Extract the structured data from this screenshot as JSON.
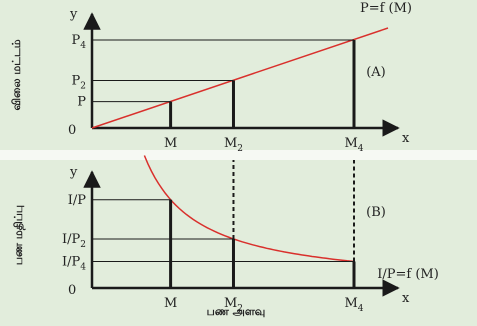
{
  "colors": {
    "background": "#e2eddc",
    "axis": "#1a1a1a",
    "curve": "#d9302c"
  },
  "chart_data": [
    {
      "id": "A",
      "type": "line",
      "panel_label": "(A)",
      "function_label": "P=f (M)",
      "x_axis_letter": "x",
      "y_axis_letter": "y",
      "origin_label": "0",
      "ylabel": "விலை மட்டம்",
      "xlim": [
        0,
        5
      ],
      "ylim": [
        0,
        5
      ],
      "line": {
        "from": [
          0,
          0
        ],
        "to": [
          5,
          5
        ]
      },
      "points": [
        {
          "x": 1.5,
          "y": 1.5,
          "x_label": "M",
          "y_label": "P",
          "x_sub": "",
          "y_sub": ""
        },
        {
          "x": 2.7,
          "y": 2.7,
          "x_label": "M",
          "y_label": "P",
          "x_sub": "2",
          "y_sub": "2"
        },
        {
          "x": 5.0,
          "y": 5.0,
          "x_label": "M",
          "y_label": "P",
          "x_sub": "4",
          "y_sub": "4"
        }
      ]
    },
    {
      "id": "B",
      "type": "line",
      "panel_label": "(B)",
      "function_label": "I/P=f (M)",
      "x_axis_letter": "x",
      "y_axis_letter": "y",
      "origin_label": "0",
      "ylabel": "பண மதிப்பு",
      "xlabel": "பண அளவு",
      "xlim": [
        0,
        5
      ],
      "ylim": [
        0,
        5
      ],
      "curve": {
        "form": "y = k / x",
        "k": 5.0,
        "x_range": [
          1.0,
          5.0
        ]
      },
      "points": [
        {
          "x": 1.5,
          "y": 3.33,
          "x_label": "M",
          "y_label": "I/P",
          "x_sub": "",
          "y_sub": ""
        },
        {
          "x": 2.7,
          "y": 1.85,
          "x_label": "M",
          "y_label": "I/P",
          "x_sub": "2",
          "y_sub": "2"
        },
        {
          "x": 5.0,
          "y": 1.0,
          "x_label": "M",
          "y_label": "I/P",
          "x_sub": "4",
          "y_sub": "4"
        }
      ]
    }
  ]
}
